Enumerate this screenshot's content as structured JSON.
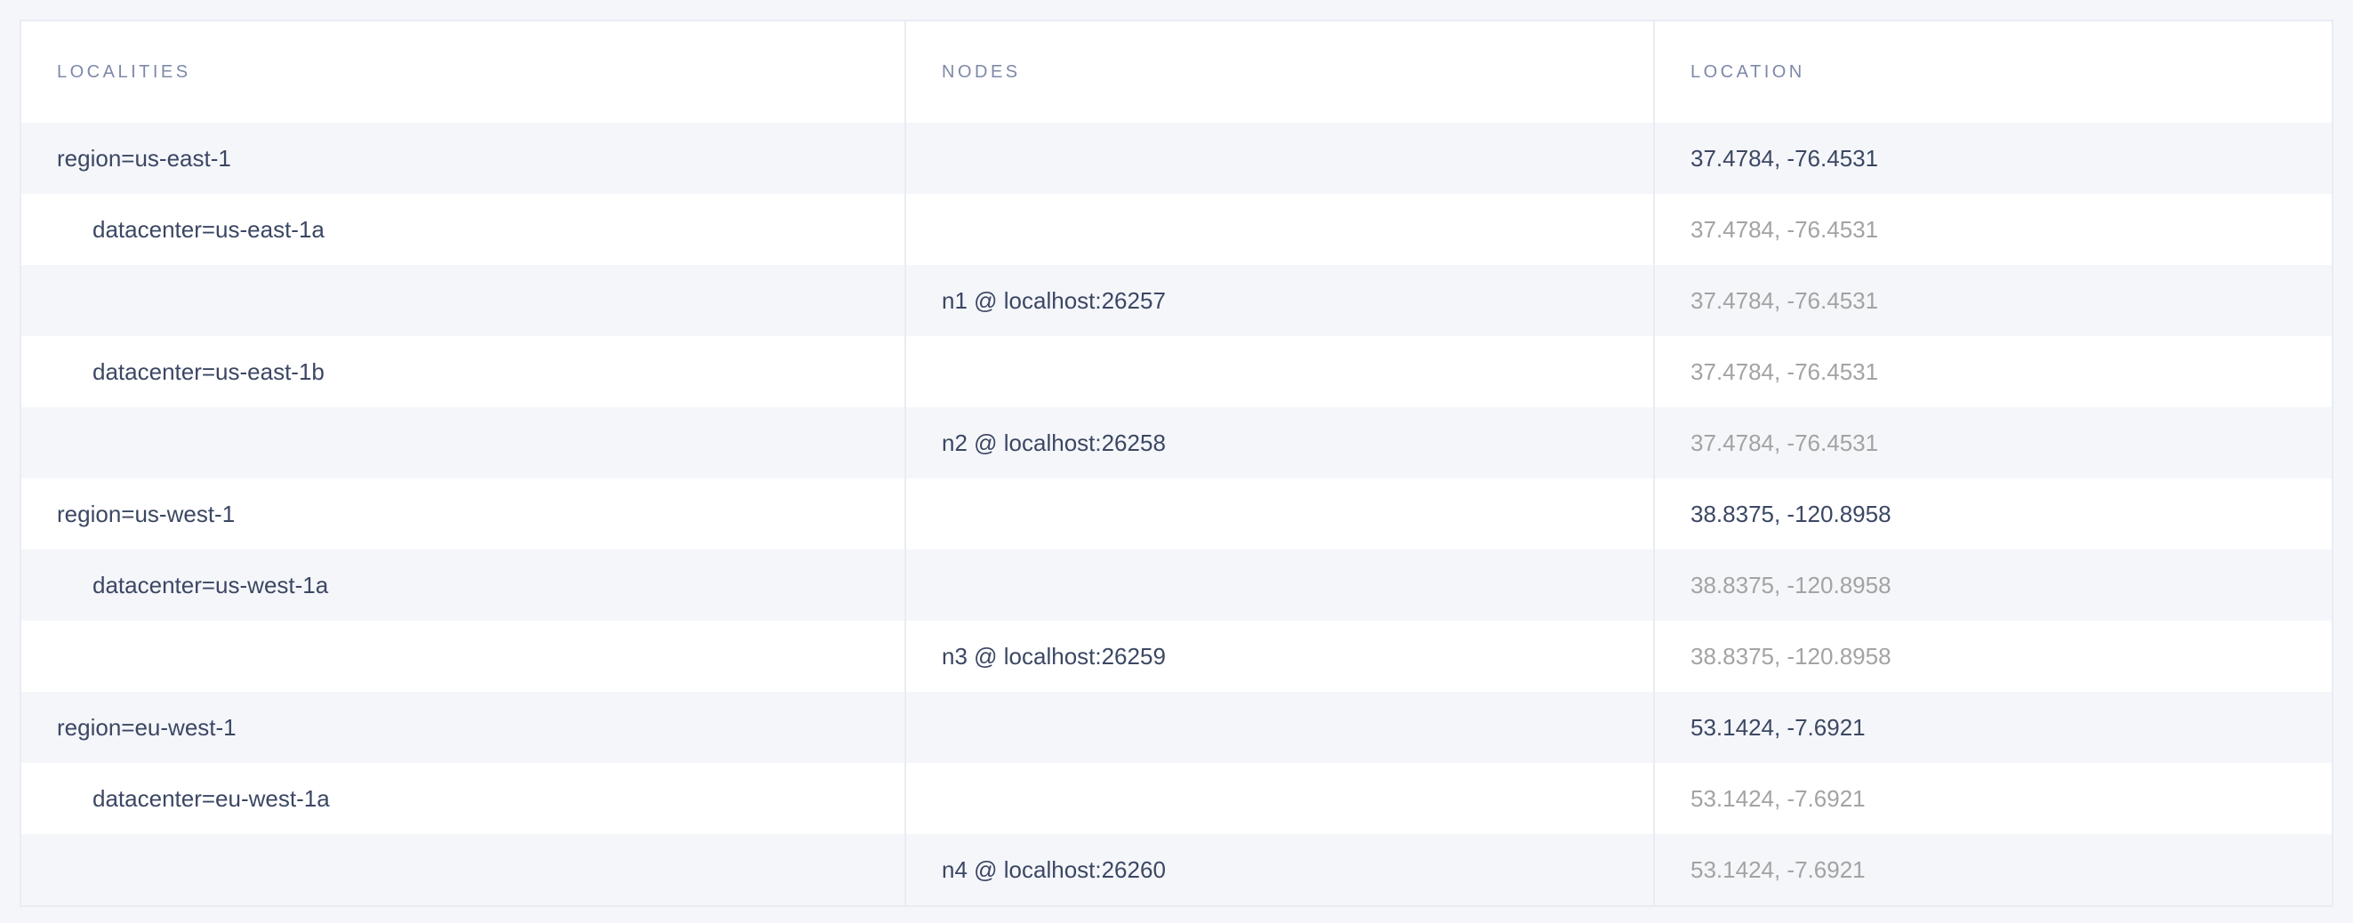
{
  "columns": [
    "LOCALITIES",
    "NODES",
    "LOCATION"
  ],
  "rows": [
    {
      "locality": "region=us-east-1",
      "level": 0,
      "node": "",
      "location": "37.4784, -76.4531",
      "location_muted": false
    },
    {
      "locality": "datacenter=us-east-1a",
      "level": 1,
      "node": "",
      "location": "37.4784, -76.4531",
      "location_muted": true
    },
    {
      "locality": "",
      "level": 2,
      "node": "n1 @ localhost:26257",
      "location": "37.4784, -76.4531",
      "location_muted": true
    },
    {
      "locality": "datacenter=us-east-1b",
      "level": 1,
      "node": "",
      "location": "37.4784, -76.4531",
      "location_muted": true
    },
    {
      "locality": "",
      "level": 2,
      "node": "n2 @ localhost:26258",
      "location": "37.4784, -76.4531",
      "location_muted": true
    },
    {
      "locality": "region=us-west-1",
      "level": 0,
      "node": "",
      "location": "38.8375, -120.8958",
      "location_muted": false
    },
    {
      "locality": "datacenter=us-west-1a",
      "level": 1,
      "node": "",
      "location": "38.8375, -120.8958",
      "location_muted": true
    },
    {
      "locality": "",
      "level": 2,
      "node": "n3 @ localhost:26259",
      "location": "38.8375, -120.8958",
      "location_muted": true
    },
    {
      "locality": "region=eu-west-1",
      "level": 0,
      "node": "",
      "location": "53.1424, -7.6921",
      "location_muted": false
    },
    {
      "locality": "datacenter=eu-west-1a",
      "level": 1,
      "node": "",
      "location": "53.1424, -7.6921",
      "location_muted": true
    },
    {
      "locality": "",
      "level": 2,
      "node": "n4 @ localhost:26260",
      "location": "53.1424, -7.6921",
      "location_muted": true
    }
  ],
  "colors": {
    "text": "#3b4763",
    "header": "#7e89a9",
    "muted": "#a3a3a3",
    "stripe": "#f5f6fa",
    "border": "#e8ecf3"
  }
}
